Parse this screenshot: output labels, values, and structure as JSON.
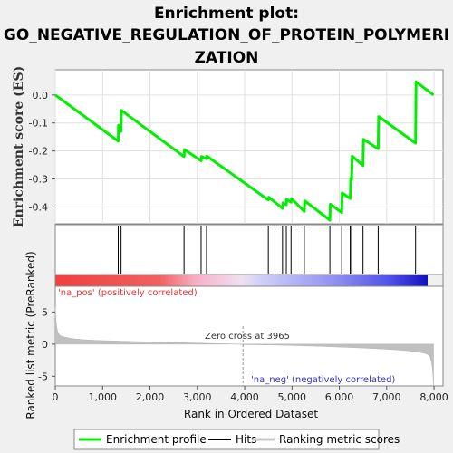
{
  "chart_data": {
    "type": "line",
    "title_lines": [
      "Enrichment plot:",
      "GO_NEGATIVE_REGULATION_OF_PROTEIN_POLYMERI",
      "ZATION"
    ],
    "es_panel": {
      "ylabel": "Enrichment score (ES)",
      "ylim": [
        -0.46,
        0.09
      ],
      "yticks": [
        0.0,
        -0.1,
        -0.2,
        -0.3,
        -0.4
      ],
      "ytick_labels": [
        "0.0",
        "-0.1",
        "-0.2",
        "-0.3",
        "-0.4"
      ],
      "series": [
        {
          "name": "Enrichment profile",
          "color": "#00ee00",
          "x": [
            0,
            1330,
            1335,
            1390,
            1395,
            2720,
            2730,
            3080,
            3090,
            3195,
            3200,
            4500,
            4510,
            4800,
            4810,
            4880,
            4890,
            4980,
            4990,
            5260,
            5270,
            5800,
            5810,
            6050,
            6060,
            6230,
            6240,
            6260,
            6270,
            6500,
            6510,
            6820,
            6830,
            7610,
            7620,
            7990
          ],
          "y": [
            0.0,
            -0.165,
            -0.108,
            -0.13,
            -0.055,
            -0.22,
            -0.195,
            -0.235,
            -0.22,
            -0.228,
            -0.218,
            -0.375,
            -0.365,
            -0.405,
            -0.385,
            -0.392,
            -0.372,
            -0.383,
            -0.37,
            -0.416,
            -0.378,
            -0.447,
            -0.39,
            -0.42,
            -0.35,
            -0.37,
            -0.298,
            -0.302,
            -0.218,
            -0.252,
            -0.158,
            -0.192,
            -0.077,
            -0.172,
            0.047,
            0.0
          ]
        }
      ]
    },
    "hits": {
      "x": [
        1330,
        1390,
        2720,
        3080,
        3195,
        4500,
        4800,
        4880,
        4980,
        5260,
        5800,
        6050,
        6230,
        6260,
        6500,
        6820,
        7610
      ]
    },
    "rank_panel": {
      "ylabel": "Ranked list metric (PreRanked)",
      "ylim": [
        -6.5,
        9
      ],
      "yticks": [
        5,
        0,
        -5
      ],
      "ytick_labels": [
        "5",
        "0",
        "-5"
      ],
      "pos_label": "'na_pos' (positively correlated)",
      "neg_label": "'na_neg' (negatively correlated)",
      "zero_cross_label": "Zero cross at 3965",
      "zero_cross": 3965
    },
    "xaxis": {
      "xlabel": "Rank in Ordered Dataset",
      "xlim": [
        0,
        8190
      ],
      "xticks": [
        0,
        1000,
        2000,
        3000,
        4000,
        5000,
        6000,
        7000,
        8000
      ],
      "xtick_labels": [
        "0",
        "1,000",
        "2,000",
        "3,000",
        "4,000",
        "5,000",
        "6,000",
        "7,000",
        "8,000"
      ],
      "n": 7990
    },
    "legend": {
      "placement": "bottom",
      "items": [
        {
          "label": "Enrichment profile",
          "color": "#00ee00"
        },
        {
          "label": "Hits",
          "color": "#000000"
        },
        {
          "label": "Ranking metric scores",
          "color": "#c8c8c8"
        }
      ]
    }
  }
}
